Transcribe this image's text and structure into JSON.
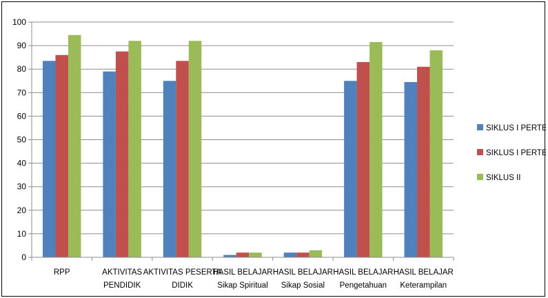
{
  "chart_data": {
    "type": "bar",
    "title": "",
    "xlabel": "",
    "ylabel": "",
    "ylim": [
      0,
      100
    ],
    "yticks": [
      0,
      10,
      20,
      30,
      40,
      50,
      60,
      70,
      80,
      90,
      100
    ],
    "grid": true,
    "legend_position": "right",
    "categories": [
      [
        "RPP"
      ],
      [
        "AKTIVITAS",
        "PENDIDIK"
      ],
      [
        "AKTIVITAS PESERTA",
        "DIDIK"
      ],
      [
        "HASIL BELAJAR",
        "Sikap Spiritual"
      ],
      [
        "HASIL BELAJAR",
        "Sikap Sosial"
      ],
      [
        "HASIL BELAJAR",
        "Pengetahuan"
      ],
      [
        "HASIL BELAJAR",
        "Keterampilan"
      ]
    ],
    "series": [
      {
        "name": "SIKLUS I PERTEMUAN",
        "color": "#4F81BD",
        "values": [
          83.5,
          79,
          75,
          1,
          2,
          75,
          74.5
        ]
      },
      {
        "name": "SIKLUS I PERTEMUAN",
        "color": "#C0504D",
        "values": [
          86,
          87.5,
          83.5,
          2,
          2,
          83,
          81
        ]
      },
      {
        "name": "SIKLUS II",
        "color": "#9BBB59",
        "values": [
          94.5,
          92,
          92,
          2,
          3,
          91.5,
          88
        ]
      }
    ]
  }
}
